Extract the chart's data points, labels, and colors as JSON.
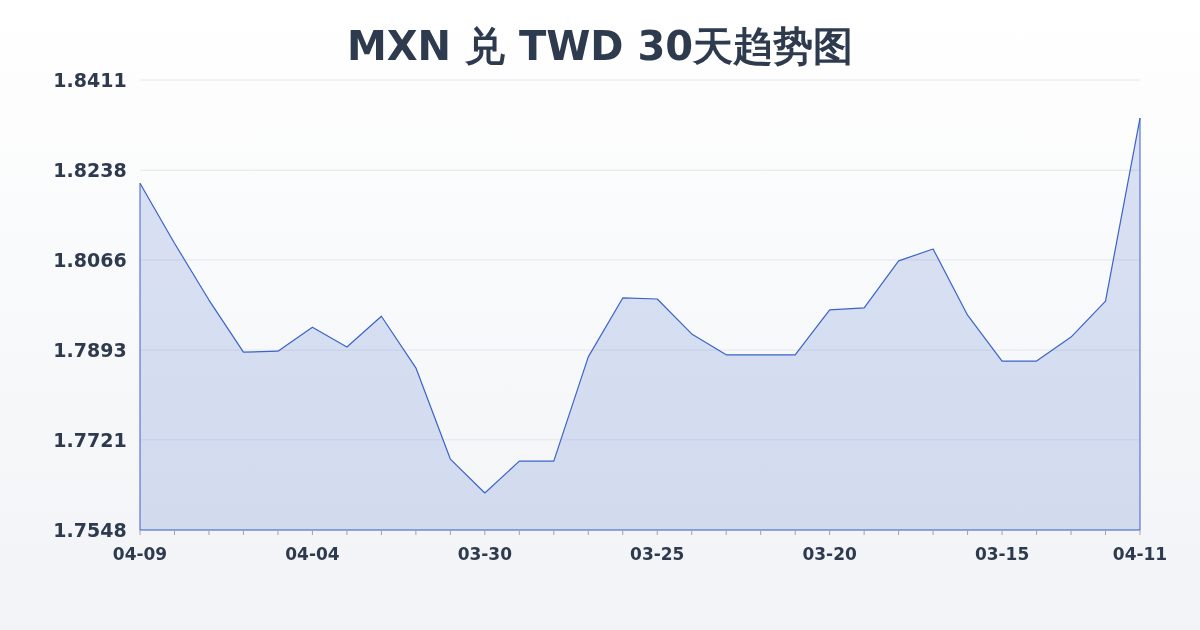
{
  "chart_data": {
    "type": "area",
    "title": "MXN 兑 TWD 30天趋势图",
    "categories": [
      "04-09",
      null,
      null,
      null,
      null,
      "04-04",
      null,
      null,
      null,
      null,
      "03-30",
      null,
      null,
      null,
      null,
      "03-25",
      null,
      null,
      null,
      null,
      "03-20",
      null,
      null,
      null,
      null,
      "03-15",
      null,
      null,
      null,
      "04-11"
    ],
    "values": [
      1.8213,
      1.8098,
      1.7989,
      1.7889,
      1.7891,
      1.7937,
      1.7899,
      1.7958,
      1.7859,
      1.7684,
      1.7619,
      1.768,
      1.768,
      1.788,
      1.7993,
      1.7991,
      1.7924,
      1.7884,
      1.7884,
      1.7884,
      1.797,
      1.7974,
      1.8064,
      1.8087,
      1.796,
      1.7872,
      1.7872,
      1.7918,
      1.7987,
      1.8338
    ],
    "color": "#3b63c9",
    "ylim": [
      1.7548,
      1.8411
    ],
    "yticks": [
      1.7548,
      1.7721,
      1.7893,
      1.8066,
      1.8238,
      1.8411
    ],
    "grid": "y"
  }
}
